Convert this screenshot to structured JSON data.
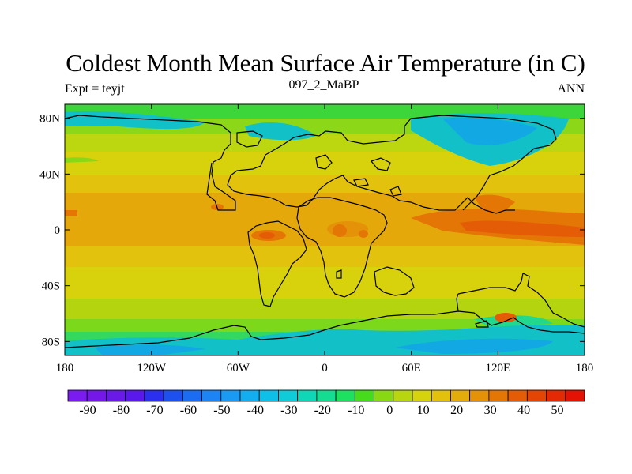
{
  "title": "Coldest Month Mean Surface Air Temperature (in C)",
  "left_label": "Expt = teyjt",
  "center_label": "097_2_MaBP",
  "right_label": "ANN",
  "x_ticks": [
    {
      "lon": -180,
      "label": "180"
    },
    {
      "lon": -120,
      "label": "120W"
    },
    {
      "lon": -60,
      "label": "60W"
    },
    {
      "lon": 0,
      "label": "0"
    },
    {
      "lon": 60,
      "label": "60E"
    },
    {
      "lon": 120,
      "label": "120E"
    },
    {
      "lon": 180,
      "label": "180"
    }
  ],
  "y_ticks": [
    {
      "lat": 80,
      "label": "80N"
    },
    {
      "lat": 40,
      "label": "40N"
    },
    {
      "lat": 0,
      "label": "0"
    },
    {
      "lat": -40,
      "label": "40S"
    },
    {
      "lat": -80,
      "label": "80S"
    }
  ],
  "colorbar": {
    "colors": [
      "#7a1bf0",
      "#7417e8",
      "#6a1ae6",
      "#5a18ec",
      "#2a30ee",
      "#1e50f0",
      "#1c6cf2",
      "#1c84f4",
      "#1a9af2",
      "#12aef0",
      "#0ec0e8",
      "#10ccd8",
      "#10d6b8",
      "#14dc90",
      "#1ee060",
      "#46dc1c",
      "#88d814",
      "#b8d610",
      "#d6d20c",
      "#e2c00c",
      "#e4ac0a",
      "#e49208",
      "#e47606",
      "#e45c06",
      "#e44404",
      "#e42a04",
      "#e41204"
    ],
    "labels": [
      "-90",
      "-80",
      "-70",
      "-60",
      "-50",
      "-40",
      "-30",
      "-20",
      "-10",
      "0",
      "10",
      "20",
      "30",
      "40",
      "50"
    ]
  }
}
